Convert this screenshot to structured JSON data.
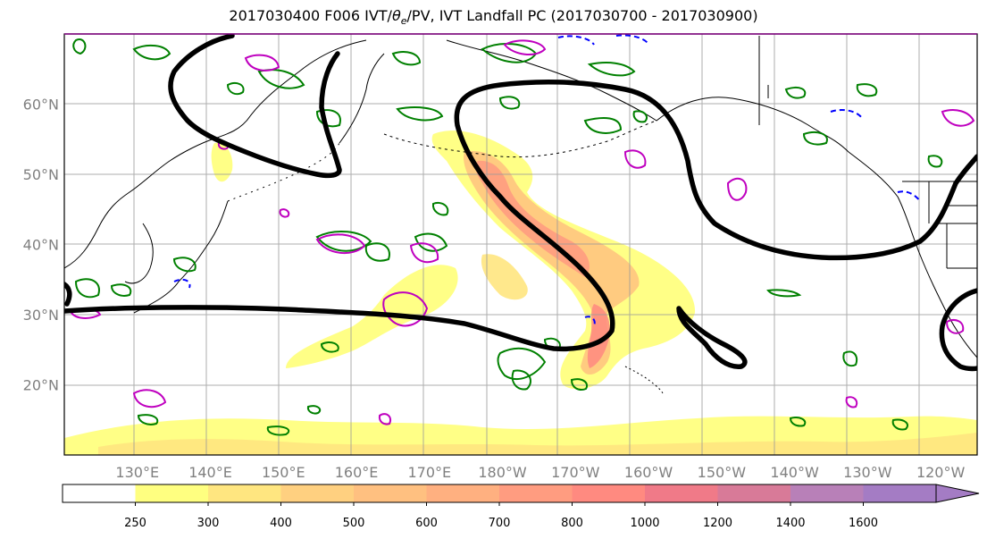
{
  "title": {
    "prefix": "2017030400 F006 IVT/",
    "theta": "θ",
    "theta_sub": "e",
    "suffix": "/PV, IVT Landfall PC (2017030700 - 2017030900)"
  },
  "map": {
    "projection": "plate-carree",
    "lon_range_east": [
      120,
      245
    ],
    "lat_range": [
      10,
      70
    ],
    "lat_ticks": [
      {
        "value": 20,
        "label": "20°N"
      },
      {
        "value": 30,
        "label": "30°N"
      },
      {
        "value": 40,
        "label": "40°N"
      },
      {
        "value": 50,
        "label": "50°N"
      },
      {
        "value": 60,
        "label": "60°N"
      }
    ],
    "lon_ticks": [
      {
        "value": 130,
        "label": "130°E"
      },
      {
        "value": 140,
        "label": "140°E"
      },
      {
        "value": 150,
        "label": "150°E"
      },
      {
        "value": 160,
        "label": "160°E"
      },
      {
        "value": 170,
        "label": "170°E"
      },
      {
        "value": 180,
        "label": "180°W"
      },
      {
        "value": 190,
        "label": "170°W"
      },
      {
        "value": 200,
        "label": "160°W"
      },
      {
        "value": 210,
        "label": "150°W"
      },
      {
        "value": 220,
        "label": "140°W"
      },
      {
        "value": 230,
        "label": "130°W"
      },
      {
        "value": 240,
        "label": "120°W"
      }
    ],
    "gridlines": true,
    "colors": {
      "grid": "#9a9a9a",
      "coast": "#000000",
      "pc_contour": "#000000",
      "pv_green": "#008000",
      "pv_magenta": "#bf00bf",
      "pv_blue": "#0000ff"
    }
  },
  "colorbar": {
    "levels": [
      250,
      300,
      400,
      500,
      600,
      700,
      800,
      1000,
      1200,
      1400,
      1600
    ],
    "labels": [
      "250",
      "300",
      "400",
      "500",
      "600",
      "700",
      "800",
      "1000",
      "1200",
      "1400",
      "1600"
    ],
    "colors": [
      "#ffffff",
      "#ffff80",
      "#ffe680",
      "#ffd080",
      "#ffc080",
      "#ffb080",
      "#ff9c80",
      "#ff8a80",
      "#f07a88",
      "#d87a98",
      "#b880b8",
      "#a47cc4"
    ],
    "extend": "max"
  }
}
